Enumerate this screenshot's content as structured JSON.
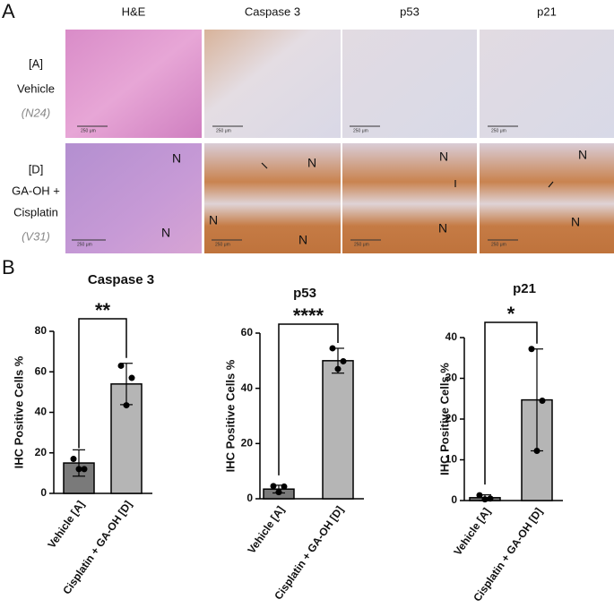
{
  "panel_a": {
    "label": "A",
    "columns": [
      "H&E",
      "Caspase 3",
      "p53",
      "p21"
    ],
    "rows": [
      {
        "group": "[A]",
        "name_lines": [
          "Vehicle"
        ],
        "id": "(N24)"
      },
      {
        "group": "[D]",
        "name_lines": [
          "GA-OH +",
          "Cisplatin"
        ],
        "id": "(V31)"
      }
    ],
    "scale_bar": "250 μm",
    "necrosis_mark": "N"
  },
  "panel_b": {
    "label": "B"
  },
  "chart_data": [
    {
      "type": "bar",
      "title": "Caspase 3",
      "ylabel": "IHC Positive Cells %",
      "categories": [
        "Vehicle [A]",
        "Cisplatin + GA-OH [D]"
      ],
      "values": [
        15,
        54
      ],
      "errors": [
        6.5,
        10.2
      ],
      "points": [
        [
          17,
          12,
          12
        ],
        [
          63,
          57,
          43.5
        ]
      ],
      "colors": [
        "#7a7a7a",
        "#b5b5b5"
      ],
      "significance": "**",
      "ylim": [
        0,
        80
      ],
      "yticks": [
        0,
        20,
        40,
        60,
        80
      ]
    },
    {
      "type": "bar",
      "title": "p53",
      "ylabel": "IHC Positive Cells %",
      "categories": [
        "Vehicle [A]",
        "Cisplatin + GA-OH [D]"
      ],
      "values": [
        3.5,
        50
      ],
      "errors": [
        1.4,
        4.5
      ],
      "points": [
        [
          4.6,
          4.4,
          2.4
        ],
        [
          54.5,
          49.8,
          47
        ]
      ],
      "colors": [
        "#7a7a7a",
        "#b5b5b5"
      ],
      "significance": "****",
      "ylim": [
        0,
        60
      ],
      "yticks": [
        0,
        20,
        40,
        60
      ]
    },
    {
      "type": "bar",
      "title": "p21",
      "ylabel": "IHC Positive Cells %",
      "categories": [
        "Vehicle [A]",
        "Cisplatin + GA-OH [D]"
      ],
      "values": [
        0.7,
        24.7
      ],
      "errors": [
        0.7,
        12.5
      ],
      "points": [
        [
          1.3,
          0.5,
          0.3
        ],
        [
          37.2,
          24.5,
          12.2
        ]
      ],
      "colors": [
        "#7a7a7a",
        "#b5b5b5"
      ],
      "significance": "*",
      "ylim": [
        0,
        40
      ],
      "yticks": [
        0,
        10,
        20,
        30,
        40
      ]
    }
  ]
}
